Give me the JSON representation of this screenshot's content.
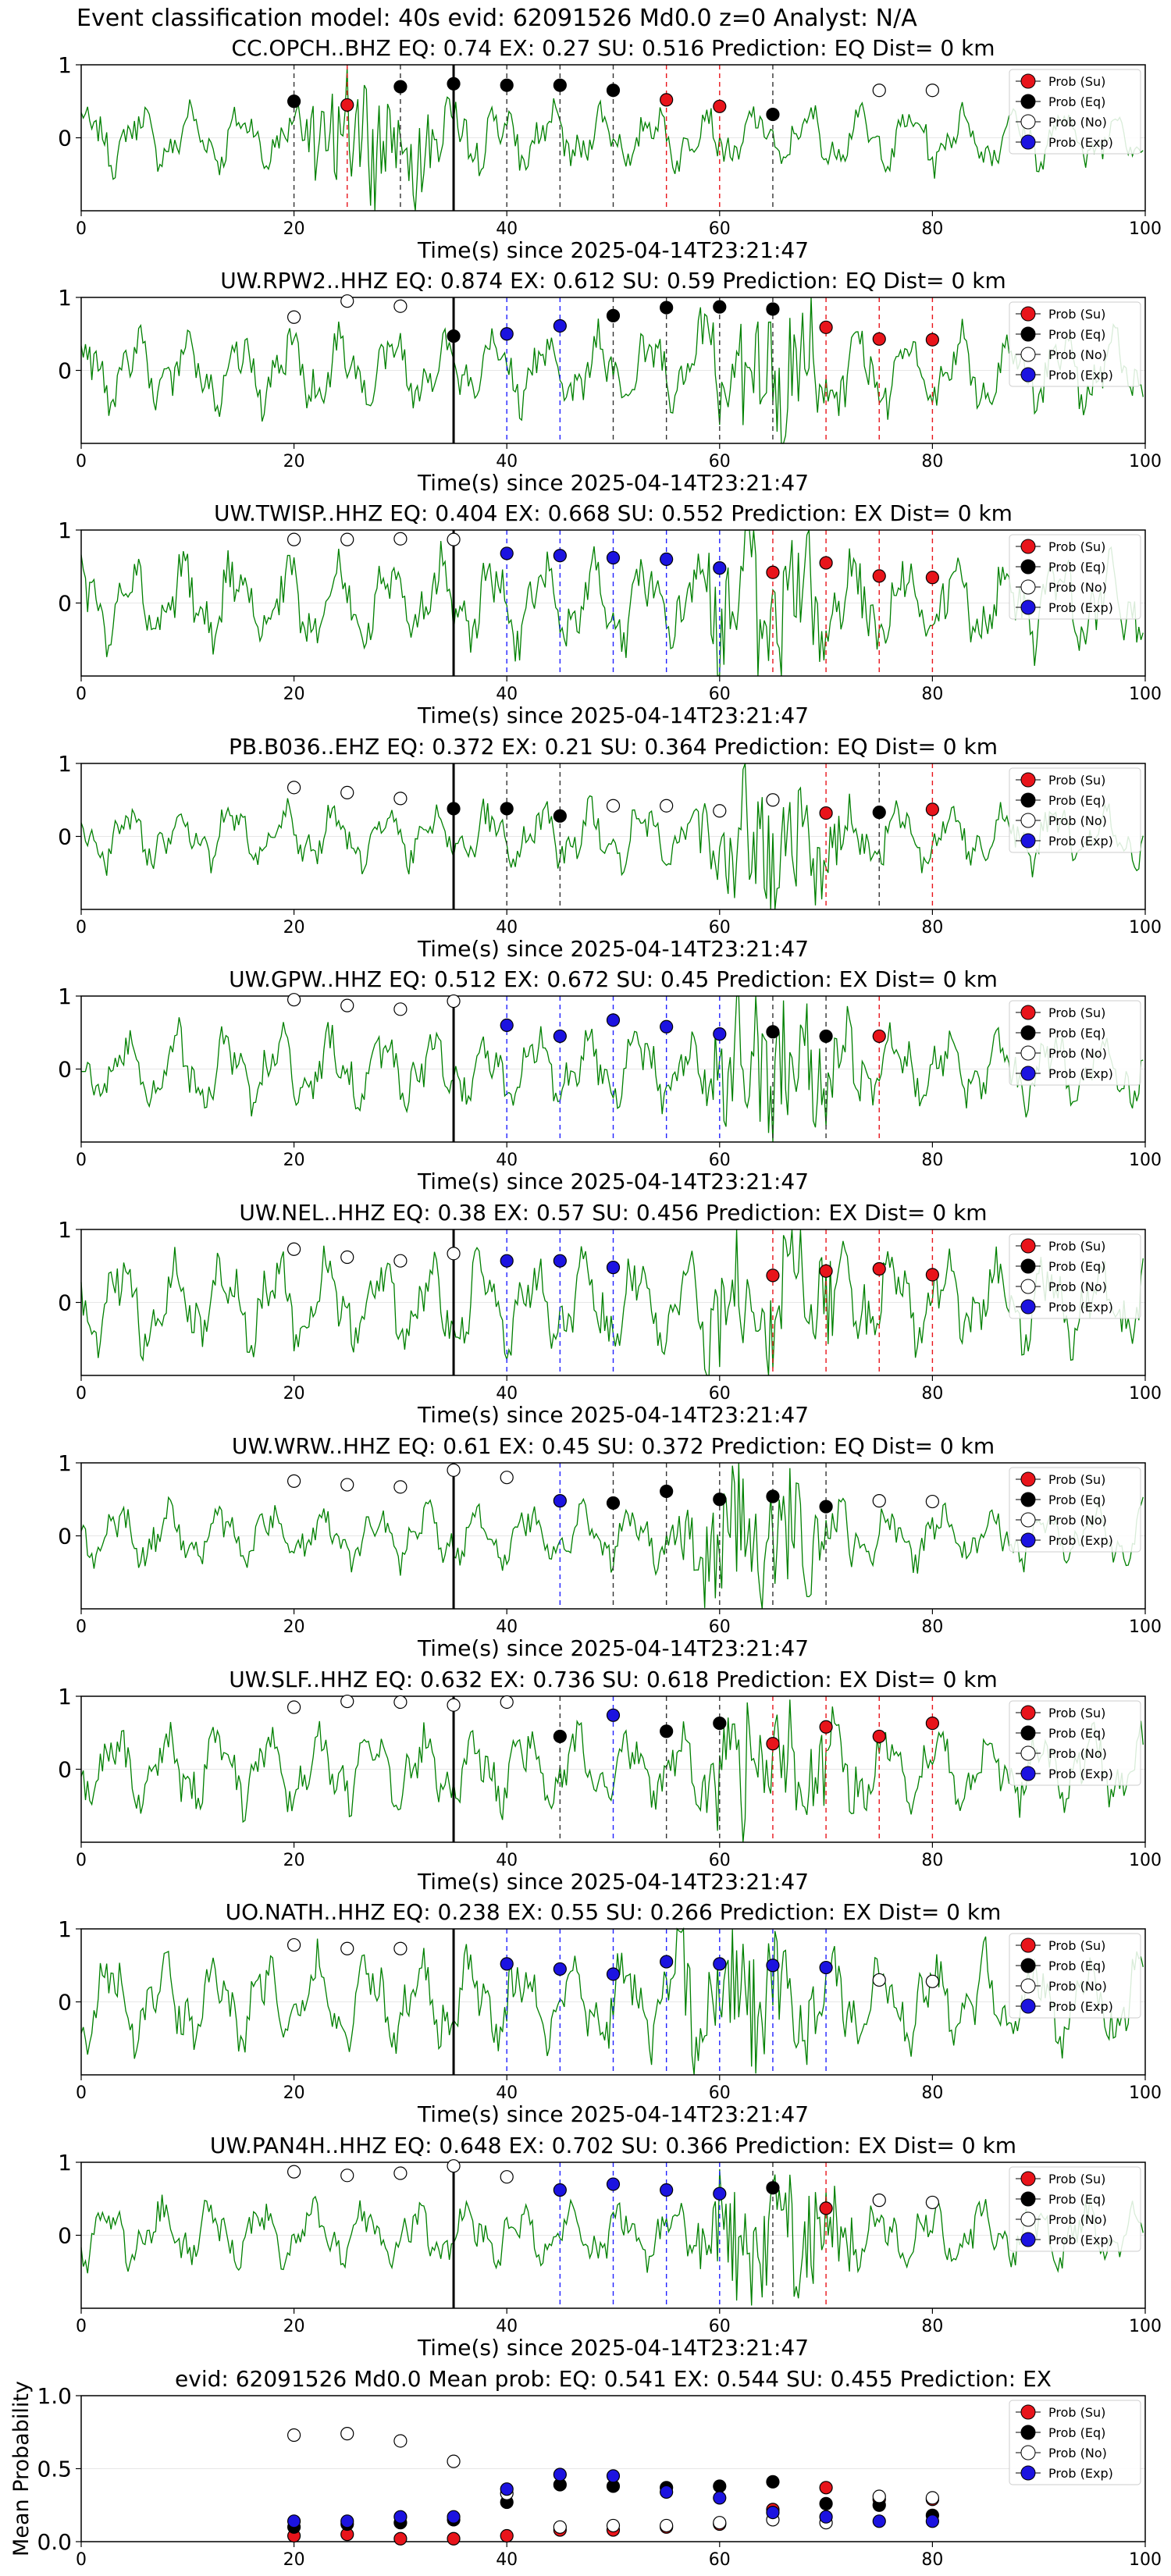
{
  "figure_title": "Event classification model: 40s evid: 62091526 Md0.0 z=0 Analyst: N/A",
  "legend": [
    "Prob (Su)",
    "Prob (Eq)",
    "Prob (No)",
    "Prob (Exp)"
  ],
  "colors": {
    "waveform": "#008000",
    "su": "#e8141b",
    "eq": "#000000",
    "no": "#ffffff",
    "exp": "#1c13e0",
    "su_line": "#e8141b",
    "eq_line": "#333333",
    "exp_line": "#2222ff",
    "pick": "#000000"
  },
  "chart_data": [
    {
      "type": "scatter",
      "title": "CC.OPCH..BHZ    EQ: 0.74   EX: 0.27   SU: 0.516    Prediction: EQ     Dist= 0 km",
      "xlabel": "Time(s) since 2025-04-14T23:21:47",
      "xlim": [
        0,
        100
      ],
      "ylim": [
        -1,
        1
      ],
      "xticks": [
        0,
        20,
        40,
        60,
        80,
        100
      ],
      "yticks": [
        0,
        1
      ],
      "grid": true,
      "legend_position": "upper-right",
      "pick_time": 35,
      "series": [
        {
          "name": "Prob (Su)",
          "x": [
            25,
            55,
            60
          ],
          "y": [
            0.45,
            0.52,
            0.43
          ]
        },
        {
          "name": "Prob (Eq)",
          "x": [
            20,
            30,
            35,
            40,
            45,
            50,
            65
          ],
          "y": [
            0.5,
            0.7,
            0.74,
            0.72,
            0.72,
            0.65,
            0.32
          ]
        },
        {
          "name": "Prob (No)",
          "x": [
            75,
            80
          ],
          "y": [
            0.65,
            0.65
          ]
        },
        {
          "name": "Prob (Exp)",
          "x": [],
          "y": []
        }
      ]
    },
    {
      "type": "scatter",
      "title": "UW.RPW2..HHZ   EQ: 0.874  EX: 0.612  SU: 0.59   Prediction: EQ     Dist= 0 km",
      "xlabel": "Time(s) since 2025-04-14T23:21:47",
      "xlim": [
        0,
        100
      ],
      "ylim": [
        -1,
        1
      ],
      "xticks": [
        0,
        20,
        40,
        60,
        80,
        100
      ],
      "yticks": [
        0,
        1
      ],
      "grid": true,
      "legend_position": "upper-right",
      "pick_time": 35,
      "series": [
        {
          "name": "Prob (Su)",
          "x": [
            70,
            75,
            80
          ],
          "y": [
            0.59,
            0.43,
            0.42
          ]
        },
        {
          "name": "Prob (Eq)",
          "x": [
            35,
            50,
            55,
            60,
            65
          ],
          "y": [
            0.47,
            0.75,
            0.86,
            0.87,
            0.84
          ]
        },
        {
          "name": "Prob (No)",
          "x": [
            20,
            25,
            30
          ],
          "y": [
            0.73,
            0.95,
            0.88
          ]
        },
        {
          "name": "Prob (Exp)",
          "x": [
            40,
            45
          ],
          "y": [
            0.5,
            0.61
          ]
        }
      ]
    },
    {
      "type": "scatter",
      "title": "UW.TWISP..HHZ   EQ: 0.404  EX: 0.668  SU: 0.552   Prediction: EX     Dist= 0 km",
      "xlabel": "Time(s) since 2025-04-14T23:21:47",
      "xlim": [
        0,
        100
      ],
      "ylim": [
        -1,
        1
      ],
      "xticks": [
        0,
        20,
        40,
        60,
        80,
        100
      ],
      "yticks": [
        0,
        1
      ],
      "grid": true,
      "legend_position": "upper-right",
      "pick_time": 35,
      "series": [
        {
          "name": "Prob (Su)",
          "x": [
            65,
            70,
            75,
            80
          ],
          "y": [
            0.42,
            0.55,
            0.37,
            0.35
          ]
        },
        {
          "name": "Prob (Eq)",
          "x": [],
          "y": []
        },
        {
          "name": "Prob (No)",
          "x": [
            20,
            25,
            30,
            35
          ],
          "y": [
            0.87,
            0.87,
            0.88,
            0.87
          ]
        },
        {
          "name": "Prob (Exp)",
          "x": [
            40,
            45,
            50,
            55,
            60
          ],
          "y": [
            0.68,
            0.65,
            0.62,
            0.6,
            0.48
          ]
        }
      ]
    },
    {
      "type": "scatter",
      "title": "PB.B036..EHZ   EQ: 0.372  EX: 0.21  SU: 0.364   Prediction: EQ     Dist= 0 km",
      "xlabel": "Time(s) since 2025-04-14T23:21:47",
      "xlim": [
        0,
        100
      ],
      "ylim": [
        -1,
        1
      ],
      "xticks": [
        0,
        20,
        40,
        60,
        80,
        100
      ],
      "yticks": [
        0,
        1
      ],
      "grid": true,
      "legend_position": "upper-right",
      "pick_time": 35,
      "series": [
        {
          "name": "Prob (Su)",
          "x": [
            70,
            80
          ],
          "y": [
            0.32,
            0.37
          ]
        },
        {
          "name": "Prob (Eq)",
          "x": [
            35,
            40,
            45,
            75
          ],
          "y": [
            0.38,
            0.38,
            0.28,
            0.33
          ]
        },
        {
          "name": "Prob (No)",
          "x": [
            20,
            25,
            30,
            50,
            55,
            60,
            65
          ],
          "y": [
            0.67,
            0.6,
            0.52,
            0.42,
            0.42,
            0.35,
            0.5
          ]
        },
        {
          "name": "Prob (Exp)",
          "x": [],
          "y": []
        }
      ]
    },
    {
      "type": "scatter",
      "title": "UW.GPW..HHZ   EQ: 0.512  EX: 0.672  SU: 0.45   Prediction: EX     Dist= 0 km",
      "xlabel": "Time(s) since 2025-04-14T23:21:47",
      "xlim": [
        0,
        100
      ],
      "ylim": [
        -1,
        1
      ],
      "xticks": [
        0,
        20,
        40,
        60,
        80,
        100
      ],
      "yticks": [
        0,
        1
      ],
      "grid": true,
      "legend_position": "upper-right",
      "pick_time": 35,
      "series": [
        {
          "name": "Prob (Su)",
          "x": [
            75
          ],
          "y": [
            0.45
          ]
        },
        {
          "name": "Prob (Eq)",
          "x": [
            65,
            70
          ],
          "y": [
            0.51,
            0.45
          ]
        },
        {
          "name": "Prob (No)",
          "x": [
            20,
            25,
            30,
            35
          ],
          "y": [
            0.95,
            0.87,
            0.82,
            0.93
          ]
        },
        {
          "name": "Prob (Exp)",
          "x": [
            40,
            45,
            50,
            55,
            60
          ],
          "y": [
            0.6,
            0.45,
            0.67,
            0.58,
            0.48
          ]
        }
      ]
    },
    {
      "type": "scatter",
      "title": "UW.NEL..HHZ   EQ: 0.38   EX: 0.57   SU: 0.456   Prediction: EX     Dist= 0 km",
      "xlabel": "Time(s) since 2025-04-14T23:21:47",
      "xlim": [
        0,
        100
      ],
      "ylim": [
        -1,
        1
      ],
      "xticks": [
        0,
        20,
        40,
        60,
        80,
        100
      ],
      "yticks": [
        0,
        1
      ],
      "grid": true,
      "legend_position": "upper-right",
      "pick_time": 35,
      "series": [
        {
          "name": "Prob (Su)",
          "x": [
            65,
            70,
            75,
            80
          ],
          "y": [
            0.37,
            0.43,
            0.46,
            0.38
          ]
        },
        {
          "name": "Prob (Eq)",
          "x": [],
          "y": []
        },
        {
          "name": "Prob (No)",
          "x": [
            20,
            25,
            30,
            35
          ],
          "y": [
            0.73,
            0.62,
            0.57,
            0.67
          ]
        },
        {
          "name": "Prob (Exp)",
          "x": [
            40,
            45,
            50
          ],
          "y": [
            0.57,
            0.57,
            0.48
          ]
        }
      ]
    },
    {
      "type": "scatter",
      "title": "UW.WRW..HHZ   EQ: 0.61   EX: 0.45   SU: 0.372   Prediction: EQ     Dist= 0 km",
      "xlabel": "Time(s) since 2025-04-14T23:21:47",
      "xlim": [
        0,
        100
      ],
      "ylim": [
        -1,
        1
      ],
      "xticks": [
        0,
        20,
        40,
        60,
        80,
        100
      ],
      "yticks": [
        0,
        1
      ],
      "grid": true,
      "legend_position": "upper-right",
      "pick_time": 35,
      "series": [
        {
          "name": "Prob (Su)",
          "x": [],
          "y": []
        },
        {
          "name": "Prob (Eq)",
          "x": [
            50,
            55,
            60,
            65,
            70
          ],
          "y": [
            0.45,
            0.61,
            0.5,
            0.54,
            0.4
          ]
        },
        {
          "name": "Prob (No)",
          "x": [
            20,
            25,
            30,
            35,
            40,
            75,
            80
          ],
          "y": [
            0.75,
            0.7,
            0.67,
            0.9,
            0.8,
            0.48,
            0.47
          ]
        },
        {
          "name": "Prob (Exp)",
          "x": [
            45
          ],
          "y": [
            0.48
          ]
        }
      ]
    },
    {
      "type": "scatter",
      "title": "UW.SLF..HHZ   EQ: 0.632  EX: 0.736  SU: 0.618   Prediction: EX     Dist= 0 km",
      "xlabel": "Time(s) since 2025-04-14T23:21:47",
      "xlim": [
        0,
        100
      ],
      "ylim": [
        -1,
        1
      ],
      "xticks": [
        0,
        20,
        40,
        60,
        80,
        100
      ],
      "yticks": [
        0,
        1
      ],
      "grid": true,
      "legend_position": "upper-right",
      "pick_time": 35,
      "series": [
        {
          "name": "Prob (Su)",
          "x": [
            65,
            70,
            75,
            80
          ],
          "y": [
            0.35,
            0.58,
            0.45,
            0.63
          ]
        },
        {
          "name": "Prob (Eq)",
          "x": [
            45,
            55,
            60
          ],
          "y": [
            0.45,
            0.52,
            0.63
          ]
        },
        {
          "name": "Prob (No)",
          "x": [
            20,
            25,
            30,
            35,
            40
          ],
          "y": [
            0.85,
            0.93,
            0.92,
            0.88,
            0.92
          ]
        },
        {
          "name": "Prob (Exp)",
          "x": [
            50
          ],
          "y": [
            0.74
          ]
        }
      ]
    },
    {
      "type": "scatter",
      "title": "UO.NATH..HHZ   EQ: 0.238  EX: 0.55  SU: 0.266   Prediction: EX     Dist= 0 km",
      "xlabel": "Time(s) since 2025-04-14T23:21:47",
      "xlim": [
        0,
        100
      ],
      "ylim": [
        -1,
        1
      ],
      "xticks": [
        0,
        20,
        40,
        60,
        80,
        100
      ],
      "yticks": [
        0,
        1
      ],
      "grid": true,
      "legend_position": "upper-right",
      "pick_time": 35,
      "series": [
        {
          "name": "Prob (Su)",
          "x": [],
          "y": []
        },
        {
          "name": "Prob (Eq)",
          "x": [],
          "y": []
        },
        {
          "name": "Prob (No)",
          "x": [
            20,
            25,
            30,
            75,
            80
          ],
          "y": [
            0.78,
            0.73,
            0.73,
            0.3,
            0.28
          ]
        },
        {
          "name": "Prob (Exp)",
          "x": [
            40,
            45,
            50,
            55,
            60,
            65,
            70
          ],
          "y": [
            0.52,
            0.45,
            0.38,
            0.55,
            0.52,
            0.5,
            0.47
          ]
        }
      ]
    },
    {
      "type": "scatter",
      "title": "UW.PAN4H..HHZ   EQ: 0.648  EX: 0.702  SU: 0.366   Prediction: EX     Dist= 0 km",
      "xlabel": "Time(s) since 2025-04-14T23:21:47",
      "xlim": [
        0,
        100
      ],
      "ylim": [
        -1,
        1
      ],
      "xticks": [
        0,
        20,
        40,
        60,
        80,
        100
      ],
      "yticks": [
        0,
        1
      ],
      "grid": true,
      "legend_position": "upper-right",
      "pick_time": 35,
      "series": [
        {
          "name": "Prob (Su)",
          "x": [
            70
          ],
          "y": [
            0.37
          ]
        },
        {
          "name": "Prob (Eq)",
          "x": [
            65
          ],
          "y": [
            0.65
          ]
        },
        {
          "name": "Prob (No)",
          "x": [
            20,
            25,
            30,
            35,
            40,
            75,
            80
          ],
          "y": [
            0.87,
            0.82,
            0.85,
            0.95,
            0.8,
            0.48,
            0.45
          ]
        },
        {
          "name": "Prob (Exp)",
          "x": [
            45,
            50,
            55,
            60
          ],
          "y": [
            0.62,
            0.7,
            0.62,
            0.57
          ]
        }
      ]
    },
    {
      "type": "scatter",
      "title": "evid: 62091526  Md0.0   Mean prob:   EQ: 0.541  EX: 0.544  SU: 0.455   Prediction: EX",
      "xlabel": "",
      "ylabel": "Mean Probability",
      "xlim": [
        0,
        100
      ],
      "ylim": [
        0,
        1
      ],
      "xticks": [
        0,
        20,
        40,
        60,
        80,
        100
      ],
      "yticks": [
        0.0,
        0.5,
        1.0
      ],
      "grid": true,
      "legend_position": "upper-right",
      "series": [
        {
          "name": "Prob (Su)",
          "x": [
            20,
            25,
            30,
            35,
            40,
            45,
            50,
            55,
            60,
            65,
            70,
            75,
            80
          ],
          "y": [
            0.04,
            0.05,
            0.02,
            0.02,
            0.04,
            0.08,
            0.08,
            0.1,
            0.12,
            0.22,
            0.37,
            0.29,
            0.29
          ]
        },
        {
          "name": "Prob (Eq)",
          "x": [
            20,
            25,
            30,
            35,
            40,
            45,
            50,
            55,
            60,
            65,
            70,
            75,
            80
          ],
          "y": [
            0.1,
            0.12,
            0.13,
            0.15,
            0.27,
            0.39,
            0.38,
            0.37,
            0.38,
            0.41,
            0.26,
            0.25,
            0.18
          ]
        },
        {
          "name": "Prob (No)",
          "x": [
            20,
            25,
            30,
            35,
            40,
            45,
            50,
            55,
            60,
            65,
            70,
            75,
            80
          ],
          "y": [
            0.73,
            0.74,
            0.69,
            0.55,
            0.33,
            0.1,
            0.11,
            0.11,
            0.13,
            0.15,
            0.13,
            0.31,
            0.3
          ]
        },
        {
          "name": "Prob (Exp)",
          "x": [
            20,
            25,
            30,
            35,
            40,
            45,
            50,
            55,
            60,
            65,
            70,
            75,
            80
          ],
          "y": [
            0.14,
            0.14,
            0.17,
            0.17,
            0.36,
            0.46,
            0.45,
            0.34,
            0.3,
            0.2,
            0.17,
            0.14,
            0.14
          ]
        }
      ]
    }
  ]
}
